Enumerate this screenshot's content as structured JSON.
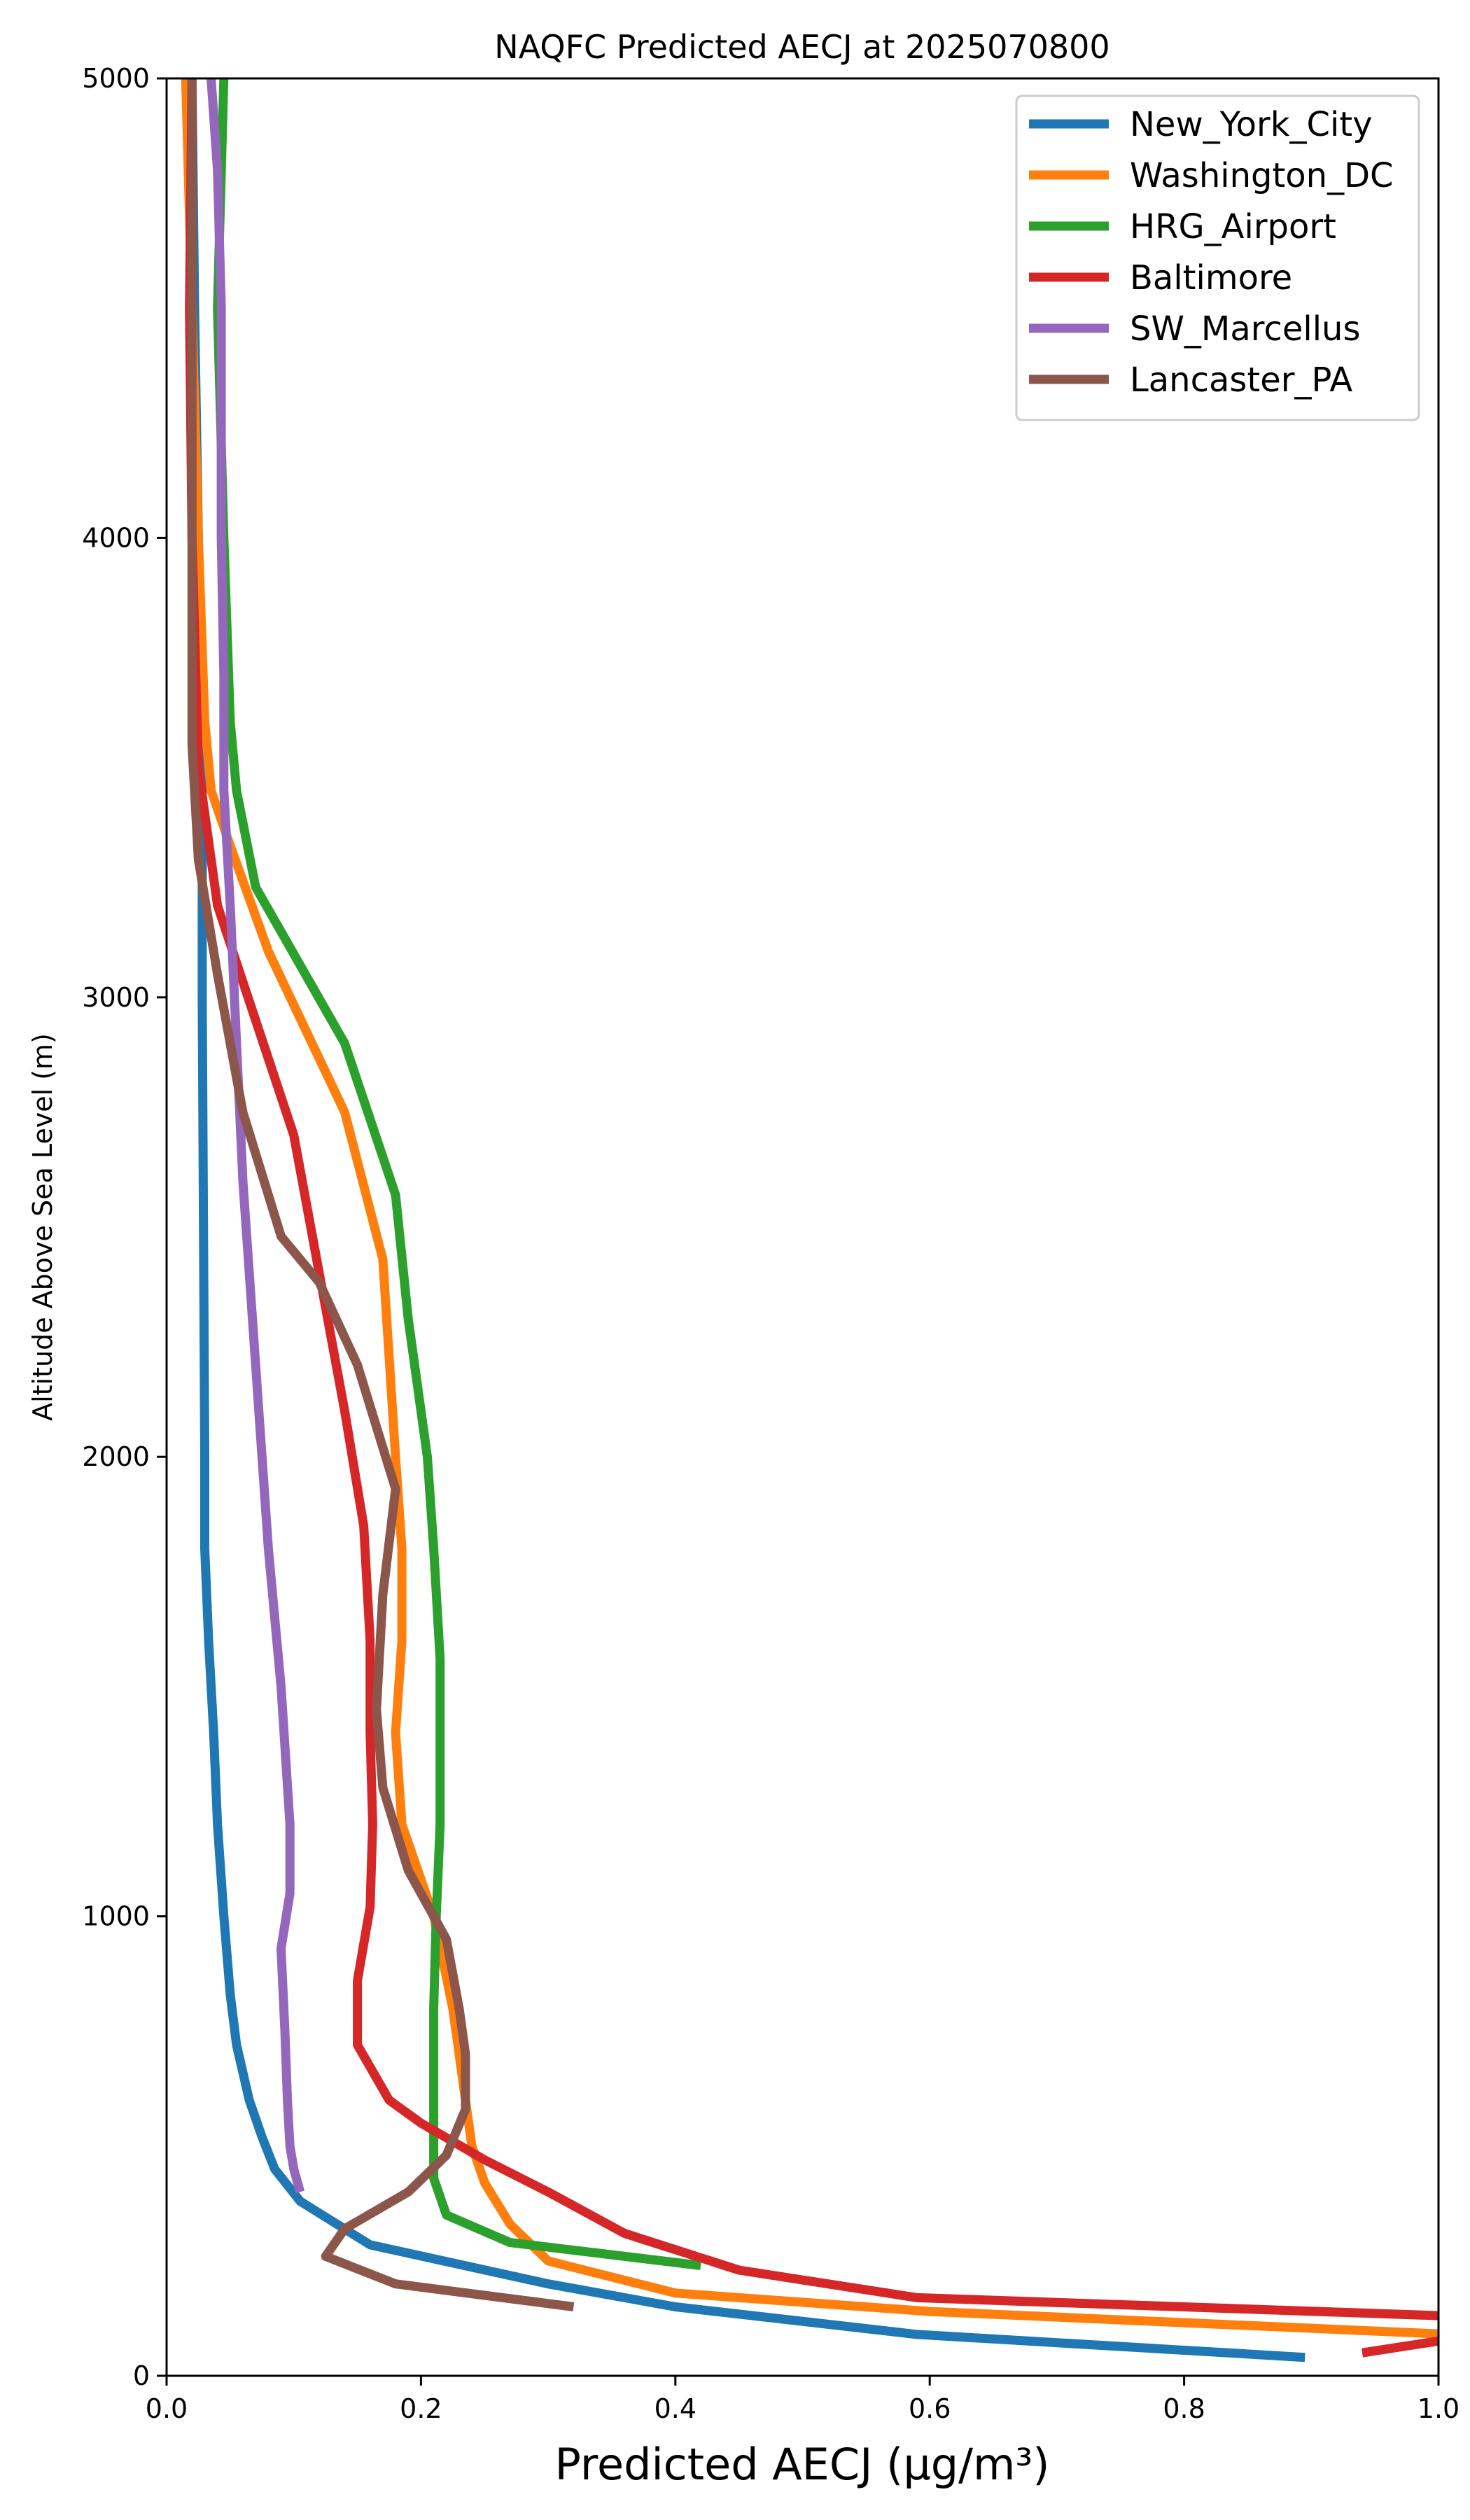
{
  "chart_data": {
    "type": "line",
    "title": "NAQFC Predicted AECJ at 2025070800",
    "xlabel": "Predicted AECJ (µg/m³)",
    "ylabel": "Altitude Above Sea Level (m)",
    "xlim": [
      0,
      1.0
    ],
    "ylim": [
      0,
      5000
    ],
    "x_ticks": [
      0,
      0.2,
      0.4,
      0.6,
      0.8,
      1.0
    ],
    "x_tick_labels": [
      "0.0",
      "0.2",
      "0.4",
      "0.6",
      "0.8",
      "1.0"
    ],
    "y_ticks": [
      0,
      1000,
      2000,
      3000,
      4000,
      5000
    ],
    "y_tick_labels": [
      "0",
      "1000",
      "2000",
      "3000",
      "4000",
      "5000"
    ],
    "grid": false,
    "legend_position": "top-right",
    "series": [
      {
        "name": "New_York_City",
        "color": "#1f77b4",
        "points": [
          [
            0.895,
            40
          ],
          [
            0.59,
            90
          ],
          [
            0.4,
            150
          ],
          [
            0.3,
            200
          ],
          [
            0.16,
            285
          ],
          [
            0.105,
            380
          ],
          [
            0.085,
            450
          ],
          [
            0.075,
            520
          ],
          [
            0.065,
            600
          ],
          [
            0.055,
            720
          ],
          [
            0.05,
            830
          ],
          [
            0.045,
            1000
          ],
          [
            0.04,
            1200
          ],
          [
            0.037,
            1400
          ],
          [
            0.033,
            1600
          ],
          [
            0.03,
            1800
          ],
          [
            0.03,
            2000
          ],
          [
            0.029,
            2500
          ],
          [
            0.028,
            3000
          ],
          [
            0.028,
            3300
          ],
          [
            0.028,
            3500
          ],
          [
            0.025,
            4000
          ],
          [
            0.022,
            4500
          ],
          [
            0.02,
            5000
          ]
        ]
      },
      {
        "name": "Washington_DC",
        "color": "#ff7f0e",
        "points": [
          [
            1.01,
            90
          ],
          [
            0.6,
            140
          ],
          [
            0.4,
            180
          ],
          [
            0.3,
            250
          ],
          [
            0.27,
            330
          ],
          [
            0.25,
            420
          ],
          [
            0.24,
            500
          ],
          [
            0.235,
            600
          ],
          [
            0.225,
            800
          ],
          [
            0.21,
            1000
          ],
          [
            0.185,
            1200
          ],
          [
            0.18,
            1400
          ],
          [
            0.185,
            1600
          ],
          [
            0.185,
            1800
          ],
          [
            0.18,
            2000
          ],
          [
            0.17,
            2430
          ],
          [
            0.14,
            2750
          ],
          [
            0.08,
            3100
          ],
          [
            0.05,
            3330
          ],
          [
            0.035,
            3450
          ],
          [
            0.03,
            3600
          ],
          [
            0.025,
            4000
          ],
          [
            0.02,
            4500
          ],
          [
            0.015,
            5000
          ]
        ]
      },
      {
        "name": "HRG_Airport",
        "color": "#2ca02c",
        "points": [
          [
            0.42,
            240
          ],
          [
            0.27,
            290
          ],
          [
            0.22,
            350
          ],
          [
            0.21,
            430
          ],
          [
            0.21,
            500
          ],
          [
            0.21,
            650
          ],
          [
            0.21,
            800
          ],
          [
            0.212,
            1000
          ],
          [
            0.215,
            1200
          ],
          [
            0.215,
            1400
          ],
          [
            0.215,
            1560
          ],
          [
            0.21,
            1800
          ],
          [
            0.205,
            2000
          ],
          [
            0.19,
            2300
          ],
          [
            0.18,
            2570
          ],
          [
            0.14,
            2900
          ],
          [
            0.07,
            3240
          ],
          [
            0.055,
            3450
          ],
          [
            0.05,
            3600
          ],
          [
            0.045,
            4000
          ],
          [
            0.04,
            4500
          ],
          [
            0.045,
            5000
          ]
        ]
      },
      {
        "name": "Baltimore",
        "color": "#d62728",
        "points": [
          [
            0.94,
            50
          ],
          [
            1.01,
            80
          ]
        ]
      },
      {
        "name": "Baltimore",
        "color": "#d62728",
        "points": [
          [
            1.01,
            130
          ],
          [
            0.59,
            170
          ],
          [
            0.45,
            230
          ],
          [
            0.36,
            310
          ],
          [
            0.3,
            400
          ],
          [
            0.25,
            470
          ],
          [
            0.2,
            550
          ],
          [
            0.175,
            600
          ],
          [
            0.15,
            720
          ],
          [
            0.15,
            860
          ],
          [
            0.16,
            1020
          ],
          [
            0.162,
            1200
          ],
          [
            0.16,
            1400
          ],
          [
            0.16,
            1600
          ],
          [
            0.155,
            1850
          ],
          [
            0.14,
            2100
          ],
          [
            0.12,
            2400
          ],
          [
            0.1,
            2700
          ],
          [
            0.07,
            2950
          ],
          [
            0.04,
            3200
          ],
          [
            0.025,
            3500
          ],
          [
            0.02,
            4000
          ],
          [
            0.018,
            4500
          ],
          [
            0.02,
            5000
          ]
        ]
      },
      {
        "name": "SW_Marcellus",
        "color": "#9467bd",
        "points": [
          [
            0.105,
            400
          ],
          [
            0.1,
            450
          ],
          [
            0.097,
            500
          ],
          [
            0.095,
            600
          ],
          [
            0.093,
            750
          ],
          [
            0.09,
            930
          ],
          [
            0.097,
            1050
          ],
          [
            0.097,
            1200
          ],
          [
            0.09,
            1500
          ],
          [
            0.08,
            1800
          ],
          [
            0.07,
            2200
          ],
          [
            0.06,
            2600
          ],
          [
            0.055,
            2900
          ],
          [
            0.05,
            3200
          ],
          [
            0.045,
            3450
          ],
          [
            0.045,
            3700
          ],
          [
            0.043,
            4000
          ],
          [
            0.043,
            4500
          ],
          [
            0.04,
            4800
          ],
          [
            0.035,
            5000
          ]
        ]
      },
      {
        "name": "Lancaster_PA",
        "color": "#8c564b",
        "points": [
          [
            0.32,
            150
          ],
          [
            0.18,
            200
          ],
          [
            0.125,
            260
          ],
          [
            0.14,
            320
          ],
          [
            0.19,
            400
          ],
          [
            0.22,
            480
          ],
          [
            0.235,
            580
          ],
          [
            0.235,
            700
          ],
          [
            0.23,
            800
          ],
          [
            0.22,
            950
          ],
          [
            0.19,
            1100
          ],
          [
            0.17,
            1280
          ],
          [
            0.165,
            1450
          ],
          [
            0.17,
            1700
          ],
          [
            0.18,
            1930
          ],
          [
            0.15,
            2200
          ],
          [
            0.12,
            2380
          ],
          [
            0.09,
            2480
          ],
          [
            0.06,
            2750
          ],
          [
            0.04,
            3050
          ],
          [
            0.025,
            3300
          ],
          [
            0.02,
            3550
          ],
          [
            0.02,
            4000
          ],
          [
            0.02,
            4500
          ],
          [
            0.02,
            5000
          ]
        ]
      }
    ]
  }
}
